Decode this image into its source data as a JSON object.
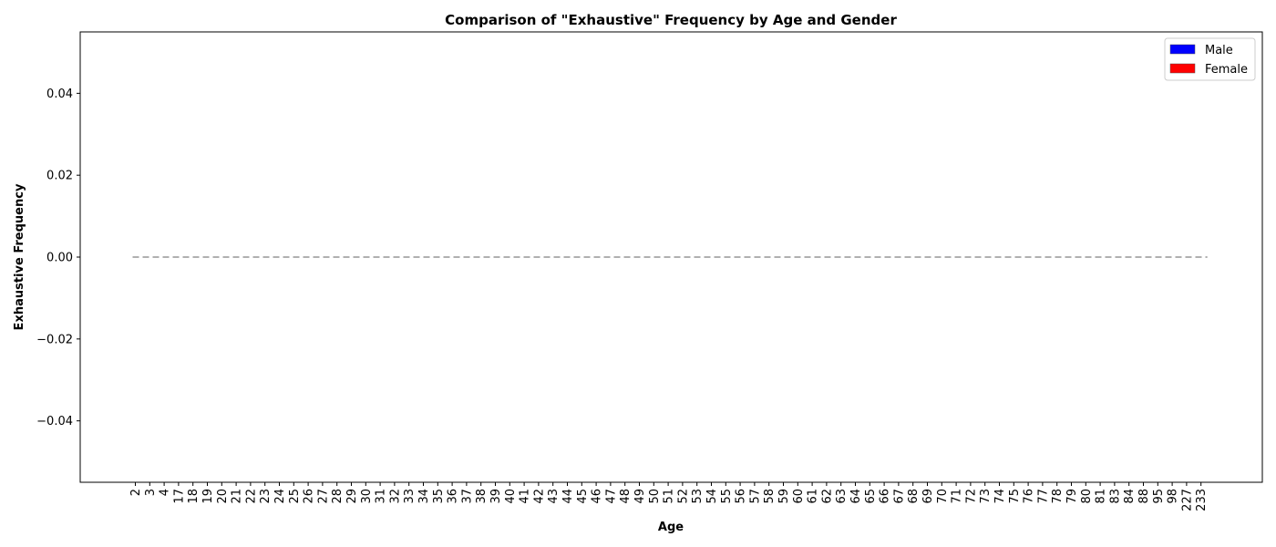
{
  "chart_data": {
    "type": "bar",
    "title": "Comparison of \"Exhaustive\" Frequency by Age and Gender",
    "xlabel": "Age",
    "ylabel": "Exhaustive Frequency",
    "categories": [
      "2",
      "3",
      "4",
      "17",
      "18",
      "19",
      "20",
      "21",
      "22",
      "23",
      "24",
      "25",
      "26",
      "27",
      "28",
      "29",
      "30",
      "31",
      "32",
      "33",
      "34",
      "35",
      "36",
      "37",
      "38",
      "39",
      "40",
      "41",
      "42",
      "43",
      "44",
      "45",
      "46",
      "47",
      "48",
      "49",
      "50",
      "51",
      "52",
      "53",
      "54",
      "55",
      "56",
      "57",
      "58",
      "59",
      "60",
      "61",
      "62",
      "63",
      "64",
      "65",
      "66",
      "67",
      "68",
      "69",
      "70",
      "71",
      "72",
      "73",
      "74",
      "75",
      "76",
      "77",
      "78",
      "79",
      "80",
      "81",
      "83",
      "84",
      "88",
      "95",
      "98",
      "227",
      "233"
    ],
    "series": [
      {
        "name": "Male",
        "color": "#0000ff",
        "values": [
          0,
          0,
          0,
          0,
          0,
          0,
          0,
          0,
          0,
          0,
          0,
          0,
          0,
          0,
          0,
          0,
          0,
          0,
          0,
          0,
          0,
          0,
          0,
          0,
          0,
          0,
          0,
          0,
          0,
          0,
          0,
          0,
          0,
          0,
          0,
          0,
          0,
          0,
          0,
          0,
          0,
          0,
          0,
          0,
          0,
          0,
          0,
          0,
          0,
          0,
          0,
          0,
          0,
          0,
          0,
          0,
          0,
          0,
          0,
          0,
          0,
          0,
          0,
          0,
          0,
          0,
          0,
          0,
          0,
          0,
          0,
          0,
          0,
          0,
          0
        ]
      },
      {
        "name": "Female",
        "color": "#ff0000",
        "values": [
          0,
          0,
          0,
          0,
          0,
          0,
          0,
          0,
          0,
          0,
          0,
          0,
          0,
          0,
          0,
          0,
          0,
          0,
          0,
          0,
          0,
          0,
          0,
          0,
          0,
          0,
          0,
          0,
          0,
          0,
          0,
          0,
          0,
          0,
          0,
          0,
          0,
          0,
          0,
          0,
          0,
          0,
          0,
          0,
          0,
          0,
          0,
          0,
          0,
          0,
          0,
          0,
          0,
          0,
          0,
          0,
          0,
          0,
          0,
          0,
          0,
          0,
          0,
          0,
          0,
          0,
          0,
          0,
          0,
          0,
          0,
          0,
          0,
          0,
          0
        ]
      }
    ],
    "ylim": [
      -0.055,
      0.055
    ],
    "yticks": [
      -0.04,
      -0.02,
      0.0,
      0.02,
      0.04
    ],
    "ytick_labels": [
      "−0.04",
      "−0.02",
      "0.00",
      "0.02",
      "0.04"
    ],
    "reference_line": {
      "y": 0,
      "style": "dashed",
      "color": "#808080"
    },
    "grid": false,
    "legend_position": "top-right"
  }
}
